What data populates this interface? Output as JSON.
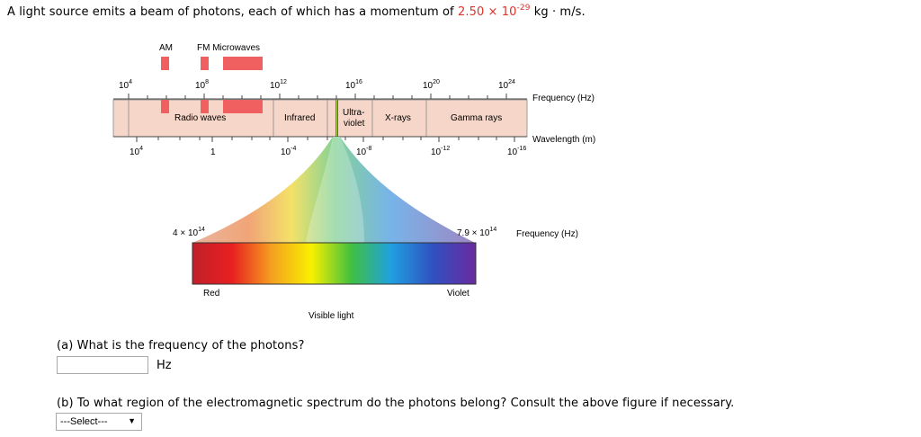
{
  "question": {
    "intro_before": "A light source emits a beam of photons, each of which has a momentum of ",
    "momentum_mantissa": "2.50 × 10",
    "momentum_exponent": "-29",
    "momentum_unit": " kg · m/s.",
    "part_a": "(a) What is the frequency of the photons?",
    "part_a_unit": "Hz",
    "part_b": "(b) To what region of the electromagnetic spectrum do the photons belong? Consult the above figure if necessary.",
    "select_value": "---Select---"
  },
  "figure": {
    "band_am": "AM",
    "band_fm_micro": "FM  Microwaves",
    "freq_ticks": [
      {
        "base": "10",
        "exp": "4"
      },
      {
        "base": "10",
        "exp": "8"
      },
      {
        "base": "10",
        "exp": "12"
      },
      {
        "base": "10",
        "exp": "16"
      },
      {
        "base": "10",
        "exp": "20"
      },
      {
        "base": "10",
        "exp": "24"
      }
    ],
    "freq_axis_label": "Frequency (Hz)",
    "regions": [
      "Radio waves",
      "Infrared",
      "Ultra-",
      "violet",
      "X-rays",
      "Gamma rays"
    ],
    "wavelength_axis_label": "Wavelength (m)",
    "wave_ticks": [
      {
        "base": "10",
        "exp": "4"
      },
      {
        "base": "1",
        "exp": ""
      },
      {
        "base": "10",
        "exp": "-4"
      },
      {
        "base": "10",
        "exp": "-8"
      },
      {
        "base": "10",
        "exp": "-12"
      },
      {
        "base": "10",
        "exp": "-16"
      }
    ],
    "visible_low": {
      "base": "4 × 10",
      "exp": "14"
    },
    "visible_high": {
      "base": "7.9 × 10",
      "exp": "14"
    },
    "visible_freq_label": "Frequency (Hz)",
    "red_label": "Red",
    "violet_label": "Violet",
    "visible_light_label": "Visible light",
    "colors": {
      "accent_red": "#e0312a",
      "band_fill": "#f5d6c8",
      "band_marker": "#f06060"
    }
  }
}
